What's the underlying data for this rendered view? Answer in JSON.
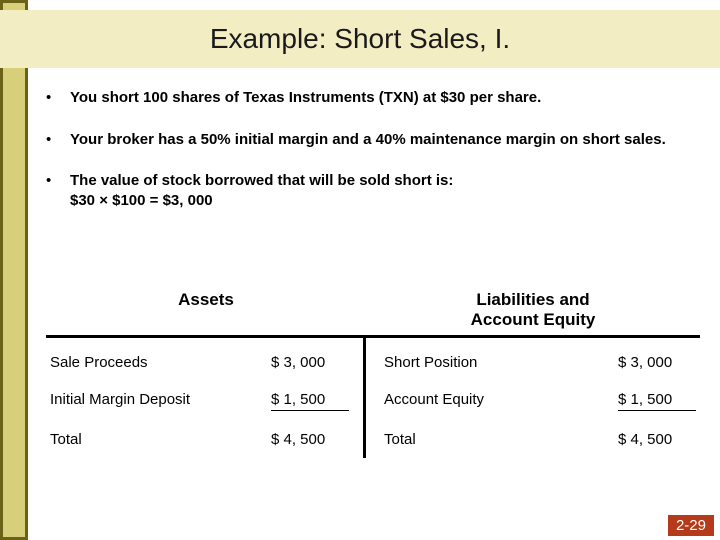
{
  "title": "Example: Short Sales, I.",
  "bullets": [
    "You short 100 shares of Texas Instruments (TXN) at $30 per share.",
    "Your broker has a 50% initial margin and a 40% maintenance margin on short sales.",
    "The value of stock borrowed that will be sold short is:\n$30 × $100 = $3, 000"
  ],
  "balance": {
    "left_header": "Assets",
    "right_header": "Liabilities and\nAccount Equity",
    "left_rows": [
      {
        "label": "Sale Proceeds",
        "value": "$ 3, 000"
      },
      {
        "label": "Initial Margin Deposit",
        "value": "$ 1, 500"
      },
      {
        "label": "Total",
        "value": "$ 4, 500"
      }
    ],
    "right_rows": [
      {
        "label": "Short Position",
        "value": "$ 3, 000"
      },
      {
        "label": "Account Equity",
        "value": "$ 1, 500"
      },
      {
        "label": "Total",
        "value": "$ 4, 500"
      }
    ]
  },
  "page_number": "2-29",
  "colors": {
    "stripe_outer": "#6b6217",
    "stripe_inner": "#d7cf7a",
    "top_band": "#f3edc4",
    "pagenum_bg": "#b53a1a"
  }
}
